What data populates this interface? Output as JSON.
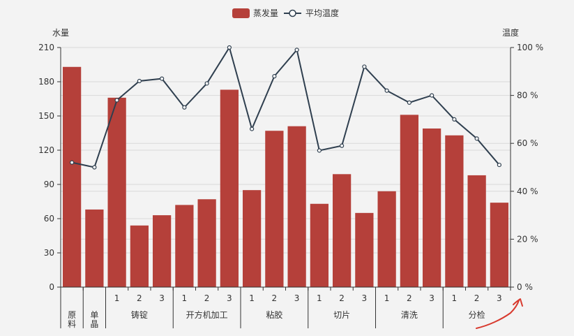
{
  "chart_data": {
    "type": "bar+line",
    "legend": [
      {
        "name": "蒸发量",
        "type": "bar",
        "color": "#b5403a"
      },
      {
        "name": "平均温度",
        "type": "line",
        "color": "#2f3f4f"
      }
    ],
    "y_left": {
      "title": "水量",
      "min": 0,
      "max": 210,
      "ticks": [
        "0",
        "30",
        "60",
        "90",
        "120",
        "150",
        "180",
        "210"
      ]
    },
    "y_right": {
      "title": "温度",
      "min": 0,
      "max": 100,
      "ticks": [
        "0 %",
        "20 %",
        "40 %",
        "60 %",
        "80 %",
        "100 %"
      ]
    },
    "x_sub_labels": [
      "",
      "",
      "1",
      "2",
      "3",
      "1",
      "2",
      "3",
      "1",
      "2",
      "3",
      "1",
      "2",
      "3",
      "1",
      "2",
      "3",
      "1",
      "2",
      "3"
    ],
    "groups": [
      {
        "label_lines": [
          "原",
          "料"
        ],
        "count": 1
      },
      {
        "label_lines": [
          "单",
          "晶"
        ],
        "count": 1
      },
      {
        "label_lines": [
          "铸锭"
        ],
        "count": 3
      },
      {
        "label_lines": [
          "开方机加工"
        ],
        "count": 3
      },
      {
        "label_lines": [
          "粘胶"
        ],
        "count": 3
      },
      {
        "label_lines": [
          "切片"
        ],
        "count": 3
      },
      {
        "label_lines": [
          "清洗"
        ],
        "count": 3
      },
      {
        "label_lines": [
          "分检"
        ],
        "count": 3
      }
    ],
    "series": [
      {
        "name": "蒸发量",
        "type": "bar",
        "axis": "left",
        "values": [
          193,
          68,
          166,
          54,
          63,
          72,
          77,
          173,
          85,
          137,
          141,
          73,
          99,
          65,
          84,
          151,
          139,
          133,
          98,
          74
        ]
      },
      {
        "name": "平均温度",
        "type": "line",
        "axis": "right",
        "values": [
          52,
          50,
          78,
          86,
          87,
          75,
          85,
          100,
          66,
          88,
          99,
          57,
          59,
          92,
          82,
          77,
          80,
          70,
          62,
          51
        ]
      }
    ]
  }
}
